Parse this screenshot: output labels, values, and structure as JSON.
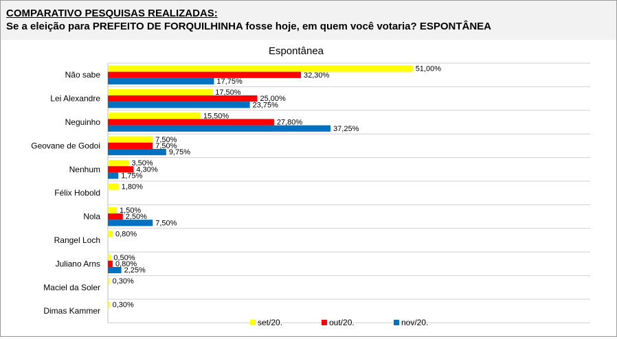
{
  "header": {
    "title": "COMPARATIVO PESQUISAS REALIZADAS:",
    "subtitle": "Se a eleição para PREFEITO DE FORQUILHINHA fosse hoje, em quem você votaria? ESPONTÂNEA"
  },
  "chart_data": {
    "type": "bar",
    "orientation": "horizontal",
    "title": "Espontânea",
    "categories": [
      "Não sabe",
      "Lei Alexandre",
      "Neguinho",
      "Geovane de Godoi",
      "Nenhum",
      "Félix Hobold",
      "Nola",
      "Rangel Loch",
      "Juliano Arns",
      "Maciel da Soler",
      "Dimas Kammer"
    ],
    "series": [
      {
        "name": "set/20.",
        "color": "#ffff00",
        "values": [
          51.0,
          17.5,
          15.5,
          7.5,
          3.5,
          1.8,
          1.5,
          0.8,
          0.5,
          0.3,
          0.3
        ],
        "labels": [
          "51,00%",
          "17,50%",
          "15,50%",
          "7,50%",
          "3,50%",
          "1,80%",
          "1,50%",
          "0,80%",
          "0,50%",
          "0,30%",
          "0,30%"
        ]
      },
      {
        "name": "out/20.",
        "color": "#ff0000",
        "values": [
          32.3,
          25.0,
          27.8,
          7.5,
          4.3,
          null,
          2.5,
          null,
          0.8,
          null,
          null
        ],
        "labels": [
          "32,30%",
          "25,00%",
          "27,80%",
          "7,50%",
          "4,30%",
          null,
          "2,50%",
          null,
          "0,80%",
          null,
          null
        ]
      },
      {
        "name": "nov/20.",
        "color": "#0070c0",
        "values": [
          17.75,
          23.75,
          37.25,
          9.75,
          1.75,
          null,
          7.5,
          null,
          2.25,
          null,
          null
        ],
        "labels": [
          "17,75%",
          "23,75%",
          "37,25%",
          "9,75%",
          "1,75%",
          null,
          "7,50%",
          null,
          "2,25%",
          null,
          null
        ]
      }
    ],
    "legend_position": "bottom",
    "grid": true
  }
}
